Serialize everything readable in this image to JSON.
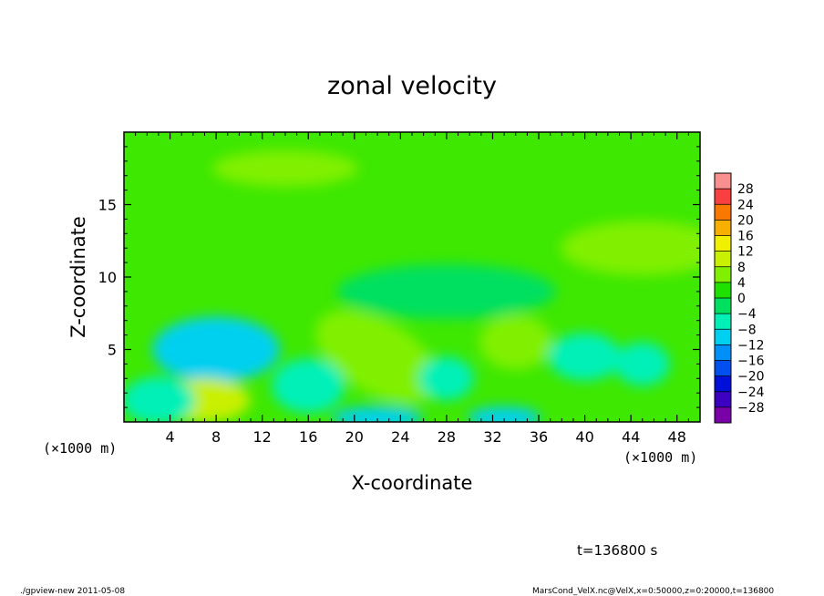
{
  "chart_data": {
    "type": "heatmap",
    "title": "zonal velocity",
    "xlabel": "X-coordinate",
    "ylabel": "Z-coordinate",
    "x_unit_left": "(×1000 m)",
    "x_unit_right": "(×1000 m)",
    "xlim": [
      0,
      50
    ],
    "ylim": [
      0,
      20
    ],
    "x_ticks": [
      4,
      8,
      12,
      16,
      20,
      24,
      28,
      32,
      36,
      40,
      44,
      48
    ],
    "y_ticks": [
      5,
      10,
      15
    ],
    "colorbar": {
      "levels": [
        -30,
        -28,
        -24,
        -20,
        -16,
        -12,
        -8,
        -4,
        0,
        4,
        8,
        12,
        16,
        20,
        24,
        28,
        30
      ],
      "labels": [
        "28",
        "24",
        "20",
        "16",
        "12",
        "8",
        "4",
        "0",
        "−4",
        "−8",
        "−12",
        "−16",
        "−20",
        "−24",
        "−28"
      ],
      "colors": [
        "#7a00a8",
        "#3c00c0",
        "#0010d8",
        "#0050f0",
        "#0090f8",
        "#00d0f0",
        "#00f0b8",
        "#00e060",
        "#20e000",
        "#80f000",
        "#c8f000",
        "#f0f000",
        "#f8b000",
        "#f87800",
        "#f84040",
        "#f89090"
      ]
    },
    "field_features": [
      {
        "x": 8,
        "z": 5.0,
        "value": -10
      },
      {
        "x": 7,
        "z": 1.5,
        "value": 8
      },
      {
        "x": 22,
        "z": 4.5,
        "value": 7
      },
      {
        "x": 34,
        "z": 5.5,
        "value": 6
      },
      {
        "x": 22,
        "z": 0.3,
        "value": -10
      },
      {
        "x": 33,
        "z": 0.3,
        "value": -9
      },
      {
        "x": 16,
        "z": 2.5,
        "value": -7
      },
      {
        "x": 40,
        "z": 4.5,
        "value": -7
      },
      {
        "x": 45,
        "z": 4.0,
        "value": -6
      },
      {
        "x": 3,
        "z": 1.5,
        "value": -6
      },
      {
        "x": 28,
        "z": 3.0,
        "value": -6
      },
      {
        "x": 45,
        "z": 12,
        "value": 4
      },
      {
        "x": 14,
        "z": 17.5,
        "value": 4
      },
      {
        "x": 28,
        "z": 9,
        "value": -2
      }
    ]
  },
  "footer": {
    "time_label": "t=136800 s",
    "program_label": "./gpview-new  2011-05-08",
    "source_label": "MarsCond_VelX.nc@VelX,x=0:50000,z=0:20000,t=136800"
  }
}
